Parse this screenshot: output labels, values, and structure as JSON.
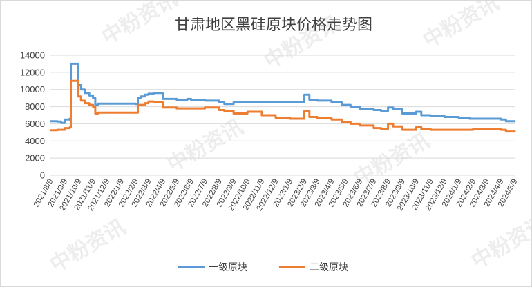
{
  "watermark": "中粉资讯",
  "chart_data": {
    "type": "line",
    "title": "甘肃地区黑硅原块价格走势图",
    "xlabel": "",
    "ylabel": "",
    "ylim": [
      0,
      14000
    ],
    "yticks": [
      0,
      2000,
      4000,
      6000,
      8000,
      10000,
      12000,
      14000
    ],
    "grid": true,
    "legend_position": "bottom",
    "x_tick_labels": [
      "2021/8/9",
      "2021/9/9",
      "2021/10/9",
      "2021/11/9",
      "2021/12/9",
      "2022/1/9",
      "2022/2/9",
      "2022/3/9",
      "2022/4/9",
      "2022/5/9",
      "2022/6/9",
      "2022/7/9",
      "2022/8/9",
      "2022/9/9",
      "2022/10/9",
      "2022/11/9",
      "2022/12/9",
      "2023/1/9",
      "2023/2/9",
      "2023/3/9",
      "2023/4/9",
      "2023/5/9",
      "2023/6/9",
      "2023/7/9",
      "2023/8/9",
      "2023/9/9",
      "2023/10/9",
      "2023/11/9",
      "2023/12/9",
      "2024/1/9",
      "2024/2/9",
      "2024/3/9",
      "2024/4/9",
      "2024/5/9"
    ],
    "series": [
      {
        "name": "一级原块",
        "color": "#5b9bd5",
        "x": [
          "2021/8/9",
          "2021/8/24",
          "2021/9/1",
          "2021/9/9",
          "2021/9/20",
          "2021/9/22",
          "2021/10/5",
          "2021/10/8",
          "2021/10/14",
          "2021/10/22",
          "2021/11/1",
          "2021/11/9",
          "2021/11/14",
          "2021/11/20",
          "2021/12/9",
          "2022/1/9",
          "2022/2/9",
          "2022/2/14",
          "2022/2/20",
          "2022/3/1",
          "2022/3/9",
          "2022/3/20",
          "2022/4/9",
          "2022/5/9",
          "2022/6/1",
          "2022/6/9",
          "2022/7/9",
          "2022/8/9",
          "2022/8/20",
          "2022/9/9",
          "2022/10/9",
          "2022/11/9",
          "2022/12/9",
          "2023/1/9",
          "2023/1/25",
          "2023/2/9",
          "2023/2/20",
          "2023/3/9",
          "2023/4/9",
          "2023/5/1",
          "2023/5/20",
          "2023/6/9",
          "2023/7/9",
          "2023/7/25",
          "2023/8/9",
          "2023/8/20",
          "2023/9/9",
          "2023/10/1",
          "2023/10/9",
          "2023/10/20",
          "2023/11/9",
          "2023/12/9",
          "2024/1/9",
          "2024/2/1",
          "2024/2/9",
          "2024/3/9",
          "2024/4/9",
          "2024/4/20",
          "2024/5/9"
        ],
        "values": [
          6300,
          6250,
          6100,
          6500,
          6600,
          13000,
          13000,
          10500,
          10000,
          9600,
          9300,
          9000,
          8200,
          8350,
          8350,
          8350,
          8300,
          9000,
          9200,
          9400,
          9500,
          9600,
          8900,
          8800,
          8900,
          8800,
          8700,
          8500,
          8300,
          8500,
          8500,
          8500,
          8500,
          8500,
          8500,
          9400,
          8800,
          8700,
          8500,
          8200,
          8000,
          7700,
          7600,
          7500,
          7900,
          7700,
          7200,
          7200,
          7400,
          7000,
          6900,
          6800,
          6700,
          6600,
          6600,
          6600,
          6500,
          6300,
          6250
        ]
      },
      {
        "name": "二级原块",
        "color": "#ed7d31",
        "x": [
          "2021/8/9",
          "2021/8/24",
          "2021/9/9",
          "2021/9/20",
          "2021/9/22",
          "2021/10/5",
          "2021/10/8",
          "2021/10/14",
          "2021/10/22",
          "2021/11/1",
          "2021/11/9",
          "2021/11/14",
          "2021/11/20",
          "2021/12/9",
          "2022/1/9",
          "2022/2/9",
          "2022/2/14",
          "2022/3/1",
          "2022/3/9",
          "2022/3/20",
          "2022/4/9",
          "2022/5/9",
          "2022/6/1",
          "2022/7/9",
          "2022/8/9",
          "2022/8/20",
          "2022/9/9",
          "2022/10/9",
          "2022/11/9",
          "2022/12/9",
          "2023/1/9",
          "2023/1/25",
          "2023/2/9",
          "2023/2/20",
          "2023/3/9",
          "2023/4/9",
          "2023/5/1",
          "2023/5/20",
          "2023/6/9",
          "2023/7/9",
          "2023/7/25",
          "2023/8/9",
          "2023/8/20",
          "2023/9/9",
          "2023/10/1",
          "2023/10/9",
          "2023/10/20",
          "2023/11/9",
          "2023/12/9",
          "2024/1/9",
          "2024/2/1",
          "2024/2/9",
          "2024/3/9",
          "2024/4/9",
          "2024/4/20",
          "2024/5/9"
        ],
        "values": [
          5250,
          5300,
          5500,
          5600,
          11000,
          11000,
          9200,
          8700,
          8400,
          8200,
          8000,
          7200,
          7300,
          7300,
          7300,
          7300,
          8200,
          8400,
          8600,
          8500,
          7900,
          7800,
          7800,
          7900,
          7600,
          7500,
          7200,
          7400,
          7000,
          6700,
          6600,
          6600,
          7500,
          6800,
          6700,
          6500,
          6200,
          6000,
          5800,
          5500,
          5400,
          6000,
          5700,
          5300,
          5300,
          5600,
          5400,
          5300,
          5300,
          5300,
          5300,
          5400,
          5400,
          5300,
          5100,
          5050
        ]
      }
    ]
  }
}
